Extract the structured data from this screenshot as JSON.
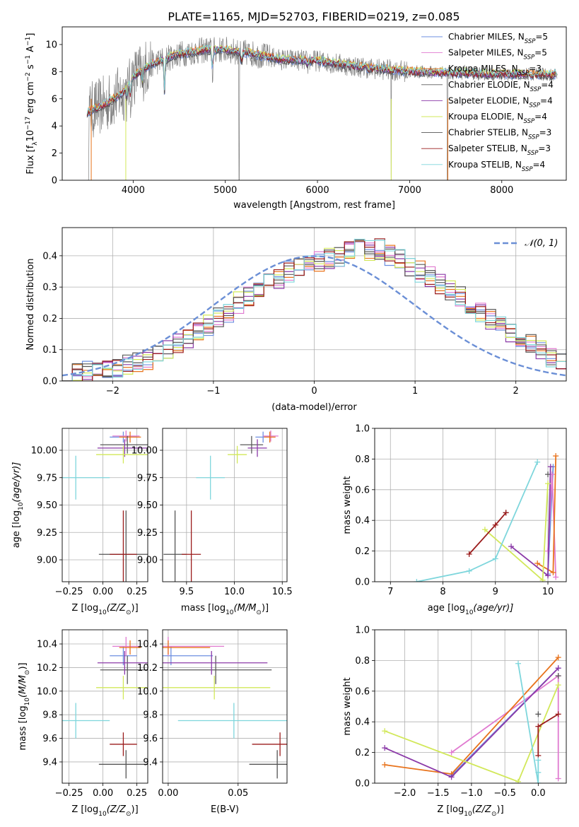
{
  "figure": {
    "title": "PLATE=1165, MJD=52703, FIBERID=0219, z=0.085"
  },
  "colors": {
    "Chabrier MILES": "#6d8fe0",
    "Salpeter MILES": "#e07ad0",
    "Kroupa MILES": "#e8731c",
    "Chabrier ELODIE": "#5a5a5a",
    "Salpeter ELODIE": "#8b3aa8",
    "Kroupa ELODIE": "#d2e85a",
    "Chabrier STELIB": "#555555",
    "Salpeter STELIB": "#9b1c1c",
    "Kroupa STELIB": "#7ed6dc",
    "data_gray": "#808080",
    "normal_curve": "#6b8fd6"
  },
  "legend_spectrum": [
    {
      "name": "Chabrier MILES",
      "label": "Chabrier MILES, N",
      "sub": "SSP",
      "n": "=5"
    },
    {
      "name": "Salpeter MILES",
      "label": "Salpeter MILES, N",
      "sub": "SSP",
      "n": "=5"
    },
    {
      "name": "Kroupa MILES",
      "label": "Kroupa MILES, N",
      "sub": "SSP",
      "n": "=3"
    },
    {
      "name": "Chabrier ELODIE",
      "label": "Chabrier ELODIE, N",
      "sub": "SSP",
      "n": "=4"
    },
    {
      "name": "Salpeter ELODIE",
      "label": "Salpeter ELODIE, N",
      "sub": "SSP",
      "n": "=4"
    },
    {
      "name": "Kroupa ELODIE",
      "label": "Kroupa ELODIE, N",
      "sub": "SSP",
      "n": "=4"
    },
    {
      "name": "Chabrier STELIB",
      "label": "Chabrier STELIB, N",
      "sub": "SSP",
      "n": "=3"
    },
    {
      "name": "Salpeter STELIB",
      "label": "Salpeter STELIB, N",
      "sub": "SSP",
      "n": "=3"
    },
    {
      "name": "Kroupa STELIB",
      "label": "Kroupa STELIB, N",
      "sub": "SSP",
      "n": "=4"
    }
  ],
  "chart_data": [
    {
      "id": "spectrum",
      "type": "line",
      "xlabel": "wavelength [Angstrom, rest frame]",
      "ylabel": "Flux [f",
      "ylabel_sub": "λ",
      "ylabel_rest": "10",
      "ylabel_exp1": "−17",
      "ylabel_rest2": " erg cm",
      "ylabel_exp2": "−2",
      "ylabel_rest3": " s",
      "ylabel_exp3": "−1",
      "ylabel_rest4": " A",
      "ylabel_exp4": "−1",
      "ylabel_end": "]",
      "xlim": [
        3230,
        8700
      ],
      "ylim": [
        0,
        11.3
      ],
      "xticks": [
        4000,
        5000,
        6000,
        7000,
        8000
      ],
      "yticks": [
        0,
        2,
        4,
        6,
        8,
        10
      ],
      "continuum": [
        [
          3500,
          5.0
        ],
        [
          3700,
          5.6
        ],
        [
          3900,
          6.5
        ],
        [
          4000,
          7.6
        ],
        [
          4200,
          8.6
        ],
        [
          4500,
          9.3
        ],
        [
          4800,
          9.6
        ],
        [
          5000,
          9.6
        ],
        [
          5300,
          9.3
        ],
        [
          5600,
          8.9
        ],
        [
          6000,
          8.8
        ],
        [
          6500,
          8.3
        ],
        [
          7000,
          8.0
        ],
        [
          7500,
          7.9
        ],
        [
          8000,
          7.8
        ],
        [
          8500,
          7.8
        ]
      ],
      "absorption_lines": [
        [
          3934,
          6.0
        ],
        [
          3969,
          6.2
        ],
        [
          4101,
          7.0
        ],
        [
          4340,
          6.4
        ],
        [
          4861,
          7.8
        ],
        [
          5175,
          8.3
        ],
        [
          5893,
          8.4
        ],
        [
          6563,
          8.1
        ],
        [
          7600,
          8.0
        ],
        [
          8542,
          7.6
        ],
        [
          8662,
          7.6
        ]
      ],
      "data_spikes": [
        [
          5150,
          0
        ],
        [
          6800,
          0
        ],
        [
          7410,
          0
        ]
      ]
    },
    {
      "id": "residuals",
      "type": "step",
      "xlabel": "(data-model)/error",
      "ylabel": "Normed distribution",
      "xlim": [
        -2.5,
        2.5
      ],
      "ylim": [
        0,
        0.49
      ],
      "xticks": [
        -2,
        -1,
        0,
        1,
        2
      ],
      "yticks": [
        0.0,
        0.1,
        0.2,
        0.3,
        0.4
      ],
      "legend": "𝒩(0, 1)",
      "bin_edges_start": -2.5,
      "bin_width": 0.1,
      "base_hist": [
        0.02,
        0.025,
        0.03,
        0.035,
        0.04,
        0.045,
        0.05,
        0.06,
        0.07,
        0.09,
        0.1,
        0.12,
        0.14,
        0.16,
        0.18,
        0.2,
        0.22,
        0.25,
        0.27,
        0.29,
        0.31,
        0.33,
        0.35,
        0.36,
        0.37,
        0.38,
        0.39,
        0.4,
        0.41,
        0.42,
        0.42,
        0.42,
        0.4,
        0.39,
        0.37,
        0.35,
        0.33,
        0.31,
        0.29,
        0.27,
        0.24,
        0.22,
        0.2,
        0.18,
        0.16,
        0.14,
        0.12,
        0.1,
        0.08,
        0.07
      ]
    },
    {
      "id": "Z-age",
      "type": "errorbar",
      "xlabel": "Z [log",
      "xlabel_sub": "10",
      "xlabel_rest": "(Z/Z",
      "xlabel_sun": "⊙",
      "xlabel_end": ")]",
      "ylabel": "age  [log",
      "ylabel_sub": "10",
      "ylabel_rest": "(age/yr)]",
      "xlim": [
        -0.3,
        0.33
      ],
      "ylim": [
        8.8,
        10.2
      ],
      "xticks": [
        -0.25,
        0.0,
        0.25
      ],
      "xtick_labels": [
        "−0.25",
        "0.00",
        "0.25"
      ],
      "yticks": [
        9.0,
        9.25,
        9.5,
        9.75,
        10.0
      ],
      "ytick_labels": [
        "9.00",
        "9.25",
        "9.50",
        "9.75",
        "10.00"
      ]
    },
    {
      "id": "mass-age",
      "type": "errorbar",
      "xlabel": "mass [log",
      "xlabel_sub": "10",
      "xlabel_rest": "(M/M",
      "xlabel_sun": "⊙",
      "xlabel_end": ")]",
      "xlim": [
        9.25,
        10.55
      ],
      "ylim": [
        8.8,
        10.2
      ],
      "xticks": [
        9.5,
        10.0,
        10.5
      ],
      "xtick_labels": [
        "9.5",
        "10.0",
        "10.5"
      ],
      "yticks": [
        9.0,
        9.25,
        9.5,
        9.75,
        10.0
      ],
      "ytick_labels": [
        "9.00",
        "9.25",
        "9.50",
        "9.75",
        "10.00"
      ]
    },
    {
      "id": "age-weight",
      "type": "line",
      "xlabel": "age  [log",
      "xlabel_sub": "10",
      "xlabel_rest": "(age/yr)]",
      "ylabel": "mass weight",
      "xlim": [
        6.7,
        10.35
      ],
      "ylim": [
        0,
        1.0
      ],
      "xticks": [
        7,
        8,
        9,
        10
      ],
      "xtick_labels": [
        "7",
        "8",
        "9",
        "10"
      ],
      "yticks": [
        0.0,
        0.2,
        0.4,
        0.6,
        0.8,
        1.0
      ],
      "ytick_labels": [
        "0.0",
        "0.2",
        "0.4",
        "0.6",
        "0.8",
        "1.0"
      ]
    },
    {
      "id": "Z-mass",
      "type": "errorbar",
      "xlabel": "Z [log",
      "xlabel_sub": "10",
      "xlabel_rest": "(Z/Z",
      "xlabel_sun": "⊙",
      "xlabel_end": ")]",
      "ylabel": "mass [log",
      "ylabel_sub": "10",
      "ylabel_rest": "(M/M",
      "ylabel_sun": "⊙",
      "ylabel_end": ")]",
      "xlim": [
        -0.3,
        0.33
      ],
      "ylim": [
        9.22,
        10.52
      ],
      "xticks": [
        -0.25,
        0.0,
        0.25
      ],
      "xtick_labels": [
        "−0.25",
        "0.00",
        "0.25"
      ],
      "yticks": [
        9.4,
        9.6,
        9.8,
        10.0,
        10.2,
        10.4
      ],
      "ytick_labels": [
        "9.4",
        "9.6",
        "9.8",
        "10.0",
        "10.2",
        "10.4"
      ]
    },
    {
      "id": "ebv-mass",
      "type": "errorbar",
      "xlabel": "E(B-V)",
      "xlim": [
        -0.004,
        0.085
      ],
      "ylim": [
        9.22,
        10.52
      ],
      "xticks": [
        0.0,
        0.05
      ],
      "xtick_labels": [
        "0.00",
        "0.05"
      ],
      "yticks": [
        9.4,
        9.6,
        9.8,
        10.0,
        10.2,
        10.4
      ],
      "ytick_labels": [
        "9.4",
        "9.6",
        "9.8",
        "10.0",
        "10.2",
        "10.4"
      ]
    },
    {
      "id": "Z-weight",
      "type": "line",
      "xlabel": "Z [log",
      "xlabel_sub": "10",
      "xlabel_rest": "(Z/Z",
      "xlabel_sun": "⊙",
      "xlabel_end": ")]",
      "ylabel": "mass weight",
      "xlim": [
        -2.45,
        0.42
      ],
      "ylim": [
        0,
        1.0
      ],
      "xticks": [
        -2.0,
        -1.5,
        -1.0,
        -0.5,
        0.0
      ],
      "xtick_labels": [
        "−2.0",
        "−1.5",
        "−1.0",
        "−0.5",
        "0.0"
      ],
      "yticks": [
        0.0,
        0.2,
        0.4,
        0.6,
        0.8,
        1.0
      ],
      "ytick_labels": [
        "0.0",
        "0.2",
        "0.4",
        "0.6",
        "0.8",
        "1.0"
      ]
    }
  ],
  "fits": [
    {
      "name": "Chabrier MILES",
      "age": [
        10.12,
        0.05
      ],
      "Z": [
        0.15,
        0.1
      ],
      "mass": [
        10.3,
        0.08
      ],
      "ebv": [
        0.002,
        0.03
      ],
      "pts": [
        [
          10.0,
          -1.3,
          0.05
        ],
        [
          10.1,
          0.3,
          0.75
        ]
      ]
    },
    {
      "name": "Salpeter MILES",
      "age": [
        10.13,
        0.05
      ],
      "Z": [
        0.17,
        0.1
      ],
      "mass": [
        10.38,
        0.08
      ],
      "ebv": [
        0.0,
        0.04
      ],
      "pts": [
        [
          10.0,
          -1.3,
          0.2
        ],
        [
          10.08,
          0.3,
          0.7
        ],
        [
          10.15,
          0.3,
          0.03
        ]
      ]
    },
    {
      "name": "Kroupa MILES",
      "age": [
        10.12,
        0.05
      ],
      "Z": [
        0.2,
        0.08
      ],
      "mass": [
        10.37,
        0.06
      ],
      "ebv": [
        0.0,
        0.03
      ],
      "pts": [
        [
          9.8,
          -2.3,
          0.12
        ],
        [
          10.1,
          -1.3,
          0.06
        ],
        [
          10.15,
          0.3,
          0.82
        ]
      ]
    },
    {
      "name": "Chabrier ELODIE",
      "age": [
        10.05,
        0.08
      ],
      "Z": [
        0.18,
        0.2
      ],
      "mass": [
        10.18,
        0.12
      ],
      "ebv": [
        0.034,
        0.04
      ],
      "pts": [
        [
          10.0,
          0.3,
          0.7
        ]
      ]
    },
    {
      "name": "Salpeter ELODIE",
      "age": [
        10.02,
        0.08
      ],
      "Z": [
        0.16,
        0.2
      ],
      "mass": [
        10.24,
        0.1
      ],
      "ebv": [
        0.031,
        0.04
      ],
      "pts": [
        [
          9.3,
          -2.3,
          0.23
        ],
        [
          10.0,
          -1.3,
          0.04
        ],
        [
          10.05,
          0.3,
          0.75
        ]
      ]
    },
    {
      "name": "Kroupa ELODIE",
      "age": [
        9.96,
        0.08
      ],
      "Z": [
        0.15,
        0.2
      ],
      "mass": [
        10.03,
        0.1
      ],
      "ebv": [
        0.033,
        0.04
      ],
      "pts": [
        [
          8.8,
          -2.3,
          0.34
        ],
        [
          9.9,
          -0.3,
          0.01
        ],
        [
          10.0,
          0.3,
          0.64
        ]
      ]
    },
    {
      "name": "Chabrier STELIB",
      "age": [
        9.05,
        0.4
      ],
      "Z": [
        0.17,
        0.2
      ],
      "mass": [
        9.38,
        0.12
      ],
      "ebv": [
        0.078,
        0.02
      ],
      "pts": [
        [
          9.2,
          0.0,
          0.45
        ]
      ]
    },
    {
      "name": "Salpeter STELIB",
      "age": [
        9.05,
        0.4
      ],
      "Z": [
        0.15,
        0.1
      ],
      "mass": [
        9.55,
        0.1
      ],
      "ebv": [
        0.08,
        0.02
      ],
      "pts": [
        [
          8.5,
          0.0,
          0.18
        ],
        [
          9.0,
          0.0,
          0.37
        ],
        [
          9.2,
          0.3,
          0.45
        ]
      ]
    },
    {
      "name": "Kroupa STELIB",
      "age": [
        9.75,
        0.2
      ],
      "Z": [
        -0.2,
        0.25
      ],
      "mass": [
        9.75,
        0.15
      ],
      "ebv": [
        0.047,
        0.04
      ],
      "pts": [
        [
          7.5,
          0.0,
          0.0
        ],
        [
          8.5,
          0.0,
          0.07
        ],
        [
          9.0,
          0.0,
          0.15
        ],
        [
          9.8,
          -0.3,
          0.78
        ]
      ]
    }
  ]
}
